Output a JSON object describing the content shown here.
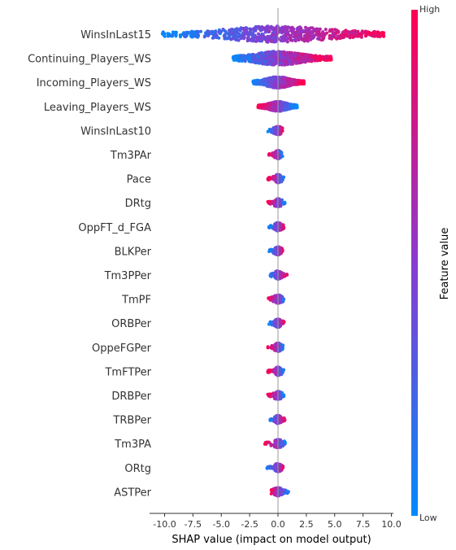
{
  "chart_data": {
    "type": "scatter",
    "subtype": "shap-beeswarm-summary",
    "xlabel": "SHAP value (impact on model output)",
    "xlim": [
      -11.2,
      10.5
    ],
    "xticks": [
      "-10.0",
      "-7.5",
      "-5.0",
      "-2.5",
      "0.0",
      "2.5",
      "5.0",
      "7.5",
      "10.0"
    ],
    "xtick_values": [
      -10,
      -7.5,
      -5,
      -2.5,
      0,
      2.5,
      5,
      7.5,
      10
    ],
    "grid": false,
    "zero_line": true,
    "colorbar": {
      "label": "Feature value",
      "high_label": "High",
      "low_label": "Low",
      "high_color": "#ff0052",
      "mid_color": "#8a3bd0",
      "low_color": "#008bfb"
    },
    "features": [
      {
        "name": "WinsInLast15",
        "min": -10.2,
        "max": 9.4,
        "neg_color": "low",
        "pos_color": "high",
        "width": 1.0
      },
      {
        "name": "Continuing_Players_WS",
        "min": -4.0,
        "max": 4.7,
        "neg_color": "low",
        "pos_color": "high",
        "width": 0.85
      },
      {
        "name": "Incoming_Players_WS",
        "min": -2.2,
        "max": 2.3,
        "neg_color": "low",
        "pos_color": "high",
        "width": 0.7
      },
      {
        "name": "Leaving_Players_WS",
        "min": -1.8,
        "max": 1.7,
        "neg_color": "high",
        "pos_color": "low",
        "width": 0.6
      },
      {
        "name": "WinsInLast10",
        "min": -0.9,
        "max": 0.4,
        "neg_color": "low",
        "pos_color": "high",
        "width": 0.35
      },
      {
        "name": "Tm3PAr",
        "min": -0.8,
        "max": 0.4,
        "neg_color": "high",
        "pos_color": "low",
        "width": 0.35
      },
      {
        "name": "Pace",
        "min": -0.9,
        "max": 0.6,
        "neg_color": "high",
        "pos_color": "low",
        "width": 0.35
      },
      {
        "name": "DRtg",
        "min": -0.9,
        "max": 0.7,
        "neg_color": "high",
        "pos_color": "low",
        "width": 0.35
      },
      {
        "name": "OppFT_d_FGA",
        "min": -0.8,
        "max": 0.6,
        "neg_color": "low",
        "pos_color": "high",
        "width": 0.35
      },
      {
        "name": "BLKPer",
        "min": -0.8,
        "max": 0.5,
        "neg_color": "low",
        "pos_color": "high",
        "width": 0.35
      },
      {
        "name": "Tm3PPer",
        "min": -0.7,
        "max": 0.9,
        "neg_color": "low",
        "pos_color": "high",
        "width": 0.35
      },
      {
        "name": "TmPF",
        "min": -1.0,
        "max": 0.6,
        "neg_color": "high",
        "pos_color": "low",
        "width": 0.35
      },
      {
        "name": "ORBPer",
        "min": -0.8,
        "max": 0.6,
        "neg_color": "low",
        "pos_color": "high",
        "width": 0.35
      },
      {
        "name": "OppeFGPer",
        "min": -0.9,
        "max": 0.6,
        "neg_color": "high",
        "pos_color": "low",
        "width": 0.35
      },
      {
        "name": "TmFTPer",
        "min": -0.9,
        "max": 0.6,
        "neg_color": "high",
        "pos_color": "low",
        "width": 0.35
      },
      {
        "name": "DRBPer",
        "min": -0.9,
        "max": 0.6,
        "neg_color": "high",
        "pos_color": "low",
        "width": 0.35
      },
      {
        "name": "TRBPer",
        "min": -0.7,
        "max": 0.7,
        "neg_color": "low",
        "pos_color": "high",
        "width": 0.35
      },
      {
        "name": "Tm3PA",
        "min": -1.2,
        "max": 0.8,
        "neg_color": "high",
        "pos_color": "low",
        "width": 0.35
      },
      {
        "name": "ORtg",
        "min": -1.0,
        "max": 0.5,
        "neg_color": "low",
        "pos_color": "high",
        "width": 0.35
      },
      {
        "name": "ASTPer",
        "min": -0.7,
        "max": 1.1,
        "neg_color": "high",
        "pos_color": "low",
        "width": 0.35
      }
    ]
  }
}
